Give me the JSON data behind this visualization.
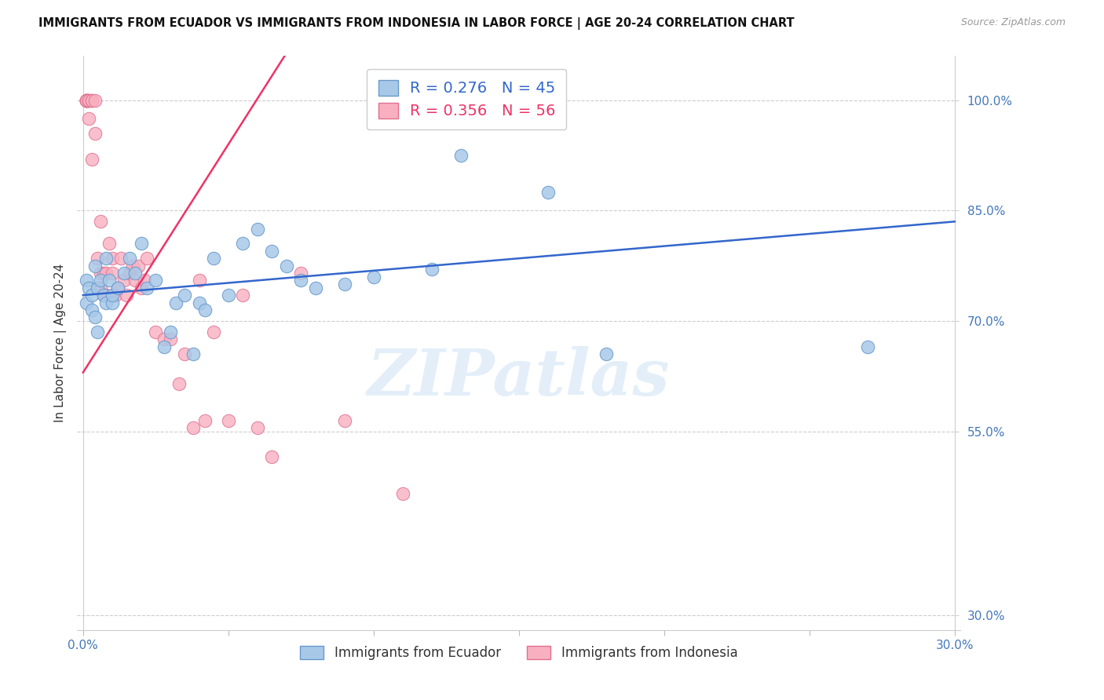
{
  "title": "IMMIGRANTS FROM ECUADOR VS IMMIGRANTS FROM INDONESIA IN LABOR FORCE | AGE 20-24 CORRELATION CHART",
  "source": "Source: ZipAtlas.com",
  "ylabel": "In Labor Force | Age 20-24",
  "xlim": [
    -0.002,
    0.302
  ],
  "ylim": [
    0.28,
    1.06
  ],
  "ytick_vals": [
    0.3,
    0.55,
    0.7,
    0.85,
    1.0
  ],
  "ytick_labels": [
    "30.0%",
    "55.0%",
    "70.0%",
    "85.0%",
    "100.0%"
  ],
  "xtick_vals": [
    0.0,
    0.05,
    0.1,
    0.15,
    0.2,
    0.25,
    0.3
  ],
  "xtick_show": [
    "0.0%",
    "",
    "",
    "",
    "",
    "",
    "30.0%"
  ],
  "ecuador_color": "#a8c8e8",
  "ecuador_edge": "#6699cc",
  "indonesia_color": "#f8b0c0",
  "indonesia_edge": "#e07090",
  "trend_ecuador_color": "#3366cc",
  "trend_indonesia_color": "#ee3366",
  "legend_R_ecuador": "0.276",
  "legend_N_ecuador": "45",
  "legend_R_indonesia": "0.356",
  "legend_N_indonesia": "56",
  "watermark": "ZIPatlas",
  "ecuador_x": [
    0.001,
    0.001,
    0.002,
    0.003,
    0.003,
    0.004,
    0.004,
    0.005,
    0.005,
    0.006,
    0.007,
    0.008,
    0.008,
    0.009,
    0.01,
    0.01,
    0.012,
    0.014,
    0.016,
    0.018,
    0.02,
    0.022,
    0.025,
    0.028,
    0.03,
    0.032,
    0.035,
    0.038,
    0.04,
    0.042,
    0.045,
    0.05,
    0.055,
    0.06,
    0.065,
    0.07,
    0.075,
    0.08,
    0.09,
    0.1,
    0.12,
    0.13,
    0.16,
    0.18,
    0.27
  ],
  "ecuador_y": [
    0.755,
    0.725,
    0.745,
    0.735,
    0.715,
    0.705,
    0.775,
    0.685,
    0.745,
    0.755,
    0.735,
    0.725,
    0.785,
    0.755,
    0.725,
    0.735,
    0.745,
    0.765,
    0.785,
    0.765,
    0.805,
    0.745,
    0.755,
    0.665,
    0.685,
    0.725,
    0.735,
    0.655,
    0.725,
    0.715,
    0.785,
    0.735,
    0.805,
    0.825,
    0.795,
    0.775,
    0.755,
    0.745,
    0.75,
    0.76,
    0.77,
    0.925,
    0.875,
    0.655,
    0.665
  ],
  "indonesia_x": [
    0.001,
    0.001,
    0.001,
    0.001,
    0.001,
    0.001,
    0.002,
    0.002,
    0.002,
    0.002,
    0.003,
    0.003,
    0.003,
    0.004,
    0.004,
    0.005,
    0.005,
    0.006,
    0.006,
    0.006,
    0.007,
    0.007,
    0.008,
    0.008,
    0.009,
    0.01,
    0.01,
    0.01,
    0.011,
    0.012,
    0.013,
    0.014,
    0.015,
    0.016,
    0.017,
    0.018,
    0.019,
    0.02,
    0.021,
    0.022,
    0.025,
    0.028,
    0.03,
    0.033,
    0.035,
    0.038,
    0.04,
    0.042,
    0.045,
    0.05,
    0.055,
    0.06,
    0.065,
    0.075,
    0.09,
    0.11
  ],
  "indonesia_y": [
    1.0,
    1.0,
    1.0,
    1.0,
    1.0,
    1.0,
    1.0,
    1.0,
    1.0,
    0.975,
    1.0,
    1.0,
    0.92,
    1.0,
    0.955,
    0.745,
    0.785,
    0.835,
    0.765,
    0.745,
    0.735,
    0.765,
    0.735,
    0.765,
    0.805,
    0.735,
    0.785,
    0.765,
    0.735,
    0.745,
    0.785,
    0.755,
    0.735,
    0.765,
    0.775,
    0.755,
    0.775,
    0.745,
    0.755,
    0.785,
    0.685,
    0.675,
    0.675,
    0.615,
    0.655,
    0.555,
    0.755,
    0.565,
    0.685,
    0.565,
    0.735,
    0.555,
    0.515,
    0.765,
    0.565,
    0.465
  ]
}
